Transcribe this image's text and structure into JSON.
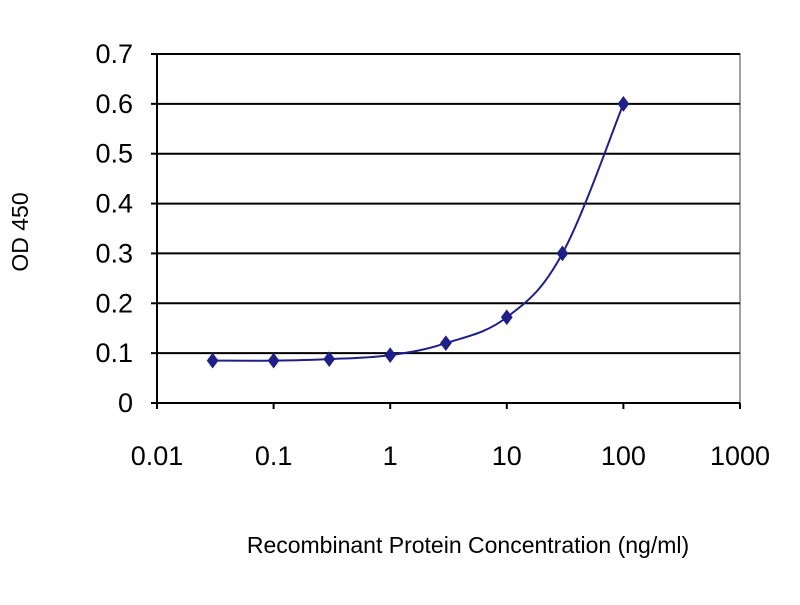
{
  "chart_data": {
    "type": "line",
    "title": "",
    "xlabel": "Recombinant Protein Concentration (ng/ml)",
    "ylabel": "OD 450",
    "x_scale": "log",
    "xlim": [
      0.01,
      1000
    ],
    "ylim": [
      0,
      0.7
    ],
    "x_ticks": [
      0.01,
      0.1,
      1,
      10,
      100,
      1000
    ],
    "x_tick_labels": [
      "0.01",
      "0.1",
      "1",
      "10",
      "100",
      "1000"
    ],
    "y_ticks": [
      0,
      0.1,
      0.2,
      0.3,
      0.4,
      0.5,
      0.6,
      0.7
    ],
    "y_tick_labels": [
      "0",
      "0.1",
      "0.2",
      "0.3",
      "0.4",
      "0.5",
      "0.6",
      "0.7"
    ],
    "grid": "horizontal",
    "legend": "none",
    "series": [
      {
        "x": [
          0.03,
          0.1,
          0.3,
          1,
          3,
          10,
          30,
          100
        ],
        "y": [
          0.085,
          0.085,
          0.088,
          0.096,
          0.12,
          0.172,
          0.3,
          0.6
        ],
        "marker": "diamond",
        "color": "#1f1f8a"
      }
    ],
    "colors": {
      "series": "#1f1f8a",
      "grid": "#000000",
      "frame": "#808080",
      "axis": "#000000"
    }
  }
}
